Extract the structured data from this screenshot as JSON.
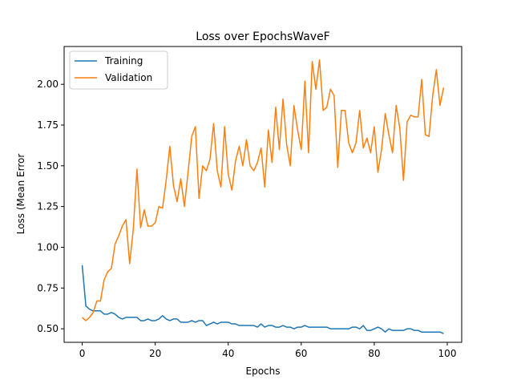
{
  "chart_data": {
    "type": "line",
    "title": "Loss over EpochsWaveF",
    "xlabel": "Epochs",
    "ylabel": "Loss (Mean Error",
    "xlim": [
      -4.95,
      103.95
    ],
    "ylim": [
      0.417,
      2.232
    ],
    "x_ticks": [
      0,
      20,
      40,
      60,
      80,
      100
    ],
    "x_tick_labels": [
      "0",
      "20",
      "40",
      "60",
      "80",
      "100"
    ],
    "y_ticks": [
      0.5,
      0.75,
      1.0,
      1.25,
      1.5,
      1.75,
      2.0
    ],
    "y_tick_labels": [
      "0.50",
      "0.75",
      "1.00",
      "1.25",
      "1.50",
      "1.75",
      "2.00"
    ],
    "grid": false,
    "legend_position": "top-left",
    "x": [
      0,
      1,
      2,
      3,
      4,
      5,
      6,
      7,
      8,
      9,
      10,
      11,
      12,
      13,
      14,
      15,
      16,
      17,
      18,
      19,
      20,
      21,
      22,
      23,
      24,
      25,
      26,
      27,
      28,
      29,
      30,
      31,
      32,
      33,
      34,
      35,
      36,
      37,
      38,
      39,
      40,
      41,
      42,
      43,
      44,
      45,
      46,
      47,
      48,
      49,
      50,
      51,
      52,
      53,
      54,
      55,
      56,
      57,
      58,
      59,
      60,
      61,
      62,
      63,
      64,
      65,
      66,
      67,
      68,
      69,
      70,
      71,
      72,
      73,
      74,
      75,
      76,
      77,
      78,
      79,
      80,
      81,
      82,
      83,
      84,
      85,
      86,
      87,
      88,
      89,
      90,
      91,
      92,
      93,
      94,
      95,
      96,
      97,
      98,
      99
    ],
    "series": [
      {
        "name": "Training",
        "color": "#1f77b4",
        "values": [
          0.89,
          0.64,
          0.62,
          0.61,
          0.61,
          0.61,
          0.59,
          0.59,
          0.6,
          0.59,
          0.57,
          0.56,
          0.57,
          0.57,
          0.57,
          0.57,
          0.55,
          0.55,
          0.56,
          0.55,
          0.55,
          0.56,
          0.58,
          0.56,
          0.55,
          0.56,
          0.56,
          0.54,
          0.54,
          0.54,
          0.55,
          0.54,
          0.55,
          0.55,
          0.52,
          0.53,
          0.54,
          0.53,
          0.54,
          0.54,
          0.54,
          0.53,
          0.53,
          0.52,
          0.52,
          0.52,
          0.52,
          0.52,
          0.51,
          0.53,
          0.51,
          0.52,
          0.52,
          0.51,
          0.51,
          0.52,
          0.51,
          0.51,
          0.5,
          0.51,
          0.51,
          0.52,
          0.51,
          0.51,
          0.51,
          0.51,
          0.51,
          0.51,
          0.5,
          0.5,
          0.5,
          0.5,
          0.5,
          0.5,
          0.51,
          0.51,
          0.5,
          0.52,
          0.49,
          0.49,
          0.5,
          0.51,
          0.5,
          0.48,
          0.5,
          0.49,
          0.49,
          0.49,
          0.49,
          0.5,
          0.5,
          0.49,
          0.49,
          0.48,
          0.48,
          0.48,
          0.48,
          0.48,
          0.48,
          0.47
        ]
      },
      {
        "name": "Validation",
        "color": "#ff7f0e",
        "values": [
          0.57,
          0.55,
          0.57,
          0.6,
          0.67,
          0.67,
          0.8,
          0.85,
          0.87,
          1.02,
          1.07,
          1.13,
          1.17,
          0.9,
          1.11,
          1.48,
          1.12,
          1.23,
          1.13,
          1.13,
          1.15,
          1.25,
          1.24,
          1.41,
          1.62,
          1.38,
          1.28,
          1.42,
          1.25,
          1.46,
          1.68,
          1.74,
          1.3,
          1.5,
          1.47,
          1.54,
          1.76,
          1.47,
          1.37,
          1.74,
          1.45,
          1.35,
          1.53,
          1.62,
          1.5,
          1.66,
          1.5,
          1.47,
          1.52,
          1.61,
          1.37,
          1.72,
          1.52,
          1.86,
          1.6,
          1.91,
          1.63,
          1.5,
          1.87,
          1.72,
          1.6,
          2.02,
          1.58,
          2.14,
          1.97,
          2.15,
          1.84,
          1.86,
          1.97,
          1.93,
          1.49,
          1.84,
          1.84,
          1.64,
          1.58,
          1.64,
          1.84,
          1.61,
          1.67,
          1.58,
          1.74,
          1.46,
          1.6,
          1.82,
          1.69,
          1.58,
          1.87,
          1.73,
          1.41,
          1.77,
          1.81,
          1.8,
          1.8,
          2.03,
          1.69,
          1.68,
          1.93,
          2.09,
          1.87,
          1.98
        ]
      }
    ]
  }
}
